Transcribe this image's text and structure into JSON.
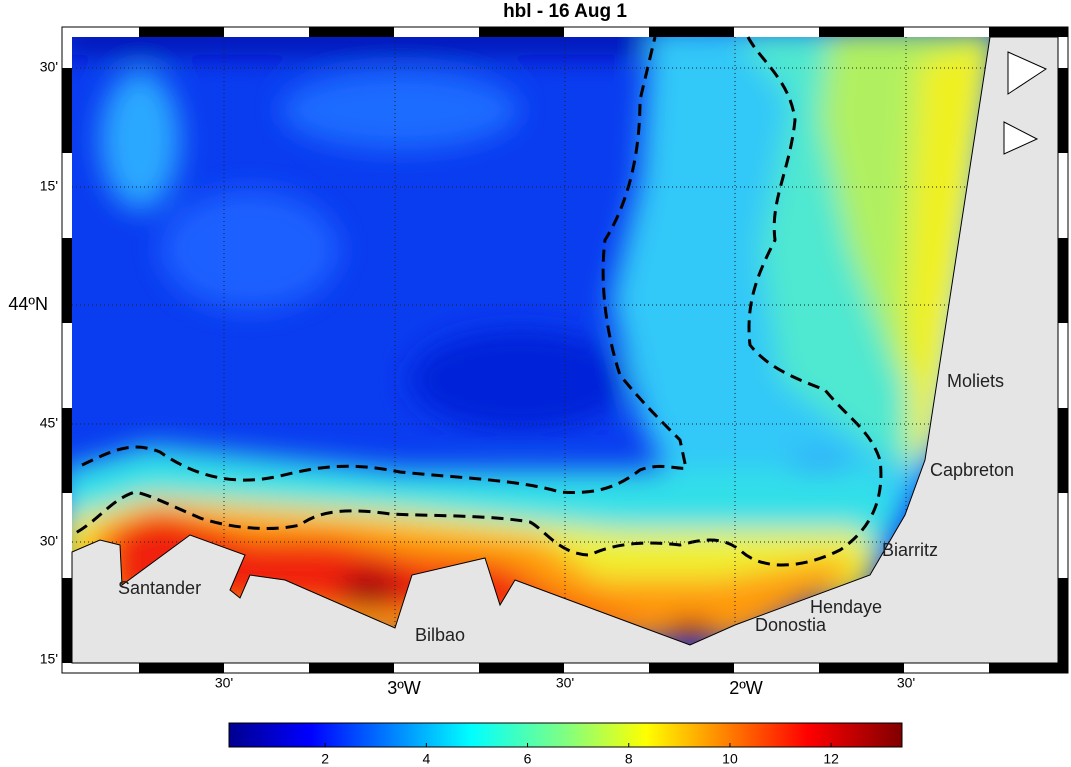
{
  "title": "hbl - 16 Aug 1",
  "lat_labels": [
    "30'",
    "15'",
    "44ºN",
    "45'",
    "30'",
    "15'"
  ],
  "lon_labels": [
    "30'",
    "3ºW",
    "30'",
    "2ºW",
    "30'"
  ],
  "places": [
    "Santander",
    "Bilbao",
    "Donostia",
    "Hendaye",
    "Biarritz",
    "Capbreton",
    "Moliets"
  ],
  "colorbar": {
    "range": [
      0.1,
      13.4
    ],
    "ticks": [
      2,
      4,
      6,
      8,
      10,
      12
    ]
  }
}
